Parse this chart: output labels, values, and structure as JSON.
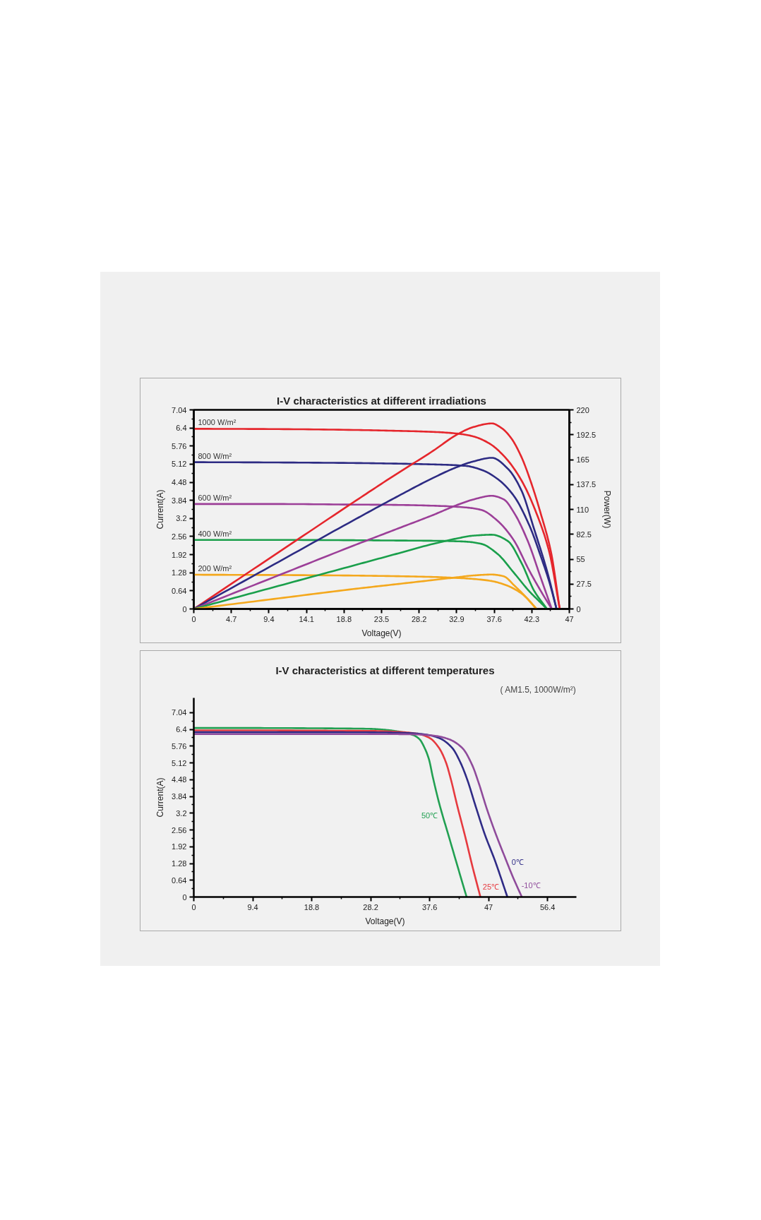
{
  "chart_data": [
    {
      "type": "line",
      "title": "I-V characteristics at different irradiations",
      "xlabel": "Voltage(V)",
      "ylabel": "Current(A)",
      "y2label": "Power(W)",
      "xlim": [
        0,
        47
      ],
      "xticks": [
        0,
        4.7,
        9.4,
        14.1,
        18.8,
        23.5,
        28.2,
        32.9,
        37.6,
        42.3,
        47
      ],
      "ylim": [
        0,
        7.04
      ],
      "yticks": [
        0,
        0.64,
        1.28,
        1.92,
        2.56,
        3.2,
        3.84,
        4.48,
        5.12,
        5.76,
        6.4,
        7.04
      ],
      "y2lim": [
        0,
        220
      ],
      "y2ticks": [
        0,
        27.5,
        55,
        82.5,
        110,
        137.5,
        165,
        192.5,
        220
      ],
      "series": [
        {
          "name": "1000 W/m²",
          "color": "#e5262c",
          "x": [
            0,
            10,
            20,
            25,
            30,
            33,
            35,
            37,
            39,
            41,
            43,
            44.5,
            45.8
          ],
          "values": [
            6.37,
            6.36,
            6.33,
            6.3,
            6.26,
            6.2,
            6.1,
            5.85,
            5.35,
            4.55,
            3.3,
            2.0,
            0
          ]
        },
        {
          "name": "800 W/m²",
          "color": "#2d2b83",
          "x": [
            0,
            10,
            20,
            25,
            30,
            34,
            36,
            38,
            40,
            42,
            43.5,
            44.5,
            45.4
          ],
          "values": [
            5.19,
            5.18,
            5.16,
            5.14,
            5.11,
            5.06,
            4.92,
            4.6,
            4.02,
            2.95,
            1.8,
            0.95,
            0
          ]
        },
        {
          "name": "600 W/m²",
          "color": "#9c3f98",
          "x": [
            0,
            10,
            20,
            25,
            30,
            34,
            36,
            38,
            40,
            42,
            43.5,
            44.8
          ],
          "values": [
            3.71,
            3.71,
            3.69,
            3.68,
            3.65,
            3.59,
            3.5,
            3.12,
            2.45,
            1.35,
            0.6,
            0
          ]
        },
        {
          "name": "400 W/m²",
          "color": "#1a9f4b",
          "x": [
            0,
            10,
            20,
            25,
            30,
            34,
            36,
            38,
            40,
            42,
            43.2,
            44.2
          ],
          "values": [
            2.44,
            2.44,
            2.43,
            2.42,
            2.41,
            2.38,
            2.3,
            1.95,
            1.3,
            0.62,
            0.28,
            0
          ]
        },
        {
          "name": "200 W/m²",
          "color": "#f4a81d",
          "x": [
            0,
            10,
            20,
            25,
            30,
            34,
            37,
            39,
            41,
            42.9
          ],
          "values": [
            1.21,
            1.2,
            1.18,
            1.16,
            1.13,
            1.08,
            1.0,
            0.85,
            0.55,
            0
          ]
        },
        {
          "color": "#e5262c",
          "axis": "y2",
          "x": [
            0,
            10,
            20,
            25,
            30,
            33,
            35,
            37.3,
            38.5,
            39.7,
            41,
            42.2,
            43.4,
            44.7,
            45.8
          ],
          "values": [
            0,
            59,
            118,
            147,
            175,
            193,
            201,
            205,
            200,
            189,
            168,
            140,
            106,
            63,
            0
          ]
        },
        {
          "color": "#2d2b83",
          "axis": "y2",
          "x": [
            0,
            10,
            20,
            25,
            30,
            33,
            35,
            37.3,
            39.3,
            41,
            42.6,
            44.3,
            45.4
          ],
          "values": [
            0,
            49,
            98,
            122,
            145,
            157,
            163,
            167,
            155,
            131,
            88,
            39,
            0
          ]
        },
        {
          "color": "#9c3f98",
          "axis": "y2",
          "x": [
            0,
            10,
            20,
            25,
            30,
            33,
            35,
            37.3,
            38.8,
            40.1,
            41.8,
            43.4,
            44.8
          ],
          "values": [
            0,
            35,
            70,
            87,
            104,
            115,
            121,
            125,
            121,
            106,
            75,
            35,
            0
          ]
        },
        {
          "color": "#1a9f4b",
          "axis": "y2",
          "x": [
            0,
            10,
            20,
            25,
            30,
            33,
            35,
            37.3,
            39.3,
            41,
            42.6,
            44.2
          ],
          "values": [
            0,
            24,
            48,
            60,
            72,
            78,
            81,
            82,
            75,
            51,
            20,
            0
          ]
        },
        {
          "color": "#f4a81d",
          "axis": "y2",
          "x": [
            0,
            10,
            20,
            25,
            30,
            33,
            35,
            37.3,
            38.8,
            40.1,
            41.8,
            42.9
          ],
          "values": [
            0,
            11,
            22,
            27,
            32,
            35,
            37,
            38,
            36,
            26,
            11,
            0
          ]
        }
      ]
    },
    {
      "type": "line",
      "title": "I-V characteristics at different temperatures",
      "subtitle": "( AM1.5, 1000W/m²)",
      "xlabel": "Voltage(V)",
      "ylabel": "Current(A)",
      "xlim": [
        0,
        61
      ],
      "xticks": [
        0,
        9.4,
        18.8,
        28.2,
        37.6,
        47,
        56.4
      ],
      "ylim": [
        0,
        7.6
      ],
      "yticks": [
        0,
        0.64,
        1.28,
        1.92,
        2.56,
        3.2,
        3.84,
        4.48,
        5.12,
        5.76,
        6.4,
        7.04
      ],
      "series": [
        {
          "name": "50℃",
          "color": "#22a052",
          "x": [
            0,
            10,
            20,
            28,
            31,
            33,
            35,
            36,
            36.8,
            37.5,
            38.1,
            39.1,
            40.7,
            42.3,
            43.5
          ],
          "values": [
            6.45,
            6.45,
            6.44,
            6.42,
            6.37,
            6.3,
            6.18,
            6.02,
            5.69,
            5.25,
            4.59,
            3.6,
            2.28,
            0.97,
            0
          ]
        },
        {
          "name": "25℃",
          "color": "#e63a3f",
          "x": [
            0,
            10,
            20,
            28,
            32,
            35.5,
            37.6,
            39.1,
            40.2,
            41,
            42,
            43.3,
            44.4,
            45.7
          ],
          "values": [
            6.36,
            6.36,
            6.35,
            6.34,
            6.31,
            6.24,
            6.07,
            5.69,
            5.14,
            4.48,
            3.49,
            2.28,
            1.19,
            0
          ]
        },
        {
          "name": "0℃",
          "color": "#2f2b86",
          "x": [
            0,
            10,
            20,
            30,
            34,
            37,
            39.1,
            41.2,
            42.5,
            43.6,
            44.9,
            46.4,
            48,
            50
          ],
          "values": [
            6.29,
            6.29,
            6.29,
            6.28,
            6.26,
            6.2,
            6.07,
            5.69,
            5.14,
            4.48,
            3.49,
            2.39,
            1.4,
            0
          ]
        },
        {
          "name": "-10℃",
          "color": "#8f4b9b",
          "x": [
            0,
            10,
            20,
            30,
            35,
            38.5,
            40.7,
            42.8,
            44.4,
            45.4,
            46.7,
            48,
            49.6,
            50.9,
            52.3
          ],
          "values": [
            6.22,
            6.22,
            6.22,
            6.22,
            6.21,
            6.15,
            6.02,
            5.69,
            5.03,
            4.37,
            3.38,
            2.5,
            1.52,
            0.75,
            0
          ]
        }
      ]
    }
  ]
}
